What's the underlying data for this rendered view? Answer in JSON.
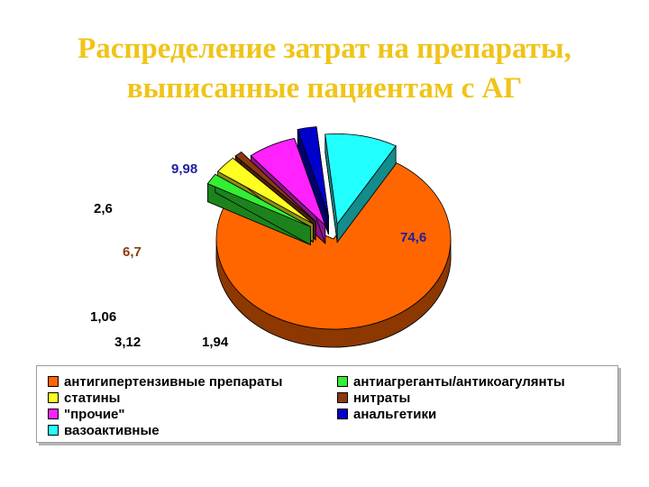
{
  "title_line1": "Распределение затрат на препараты,",
  "title_line2": "выписанные пациентам с АГ",
  "chart_data": {
    "type": "pie",
    "title": "Распределение затрат на препараты, выписанные пациентам с АГ",
    "exploded": true,
    "three_d": true,
    "legend_position": "bottom",
    "slices": [
      {
        "label": "антигипертензивные препараты",
        "value": 74.6,
        "value_text": "74,6",
        "color": "#ff6600",
        "label_color": "#1f1f9e"
      },
      {
        "label": "антиагреганты/антикоагулянты",
        "value": 1.94,
        "value_text": "1,94",
        "color": "#33ee33",
        "label_color": "#000000"
      },
      {
        "label": "статины",
        "value": 3.12,
        "value_text": "3,12",
        "color": "#ffff22",
        "label_color": "#000000"
      },
      {
        "label": "нитраты",
        "value": 1.06,
        "value_text": "1,06",
        "color": "#8b3a10",
        "label_color": "#000000"
      },
      {
        "label": "\"прочие\"",
        "value": 6.7,
        "value_text": "6,7",
        "color": "#ff22ff",
        "label_color": "#8b3a10"
      },
      {
        "label": "анальгетики",
        "value": 2.6,
        "value_text": "2,6",
        "color": "#0000cc",
        "label_color": "#000000"
      },
      {
        "label": "вазоактивные",
        "value": 9.98,
        "value_text": "9,98",
        "color": "#22ffff",
        "label_color": "#1f1f9e"
      }
    ],
    "legend": [
      "антигипертензивные препараты",
      "антиагреганты/антикоагулянты",
      "статины",
      "нитраты",
      "\"прочие\"",
      "анальгетики",
      "вазоактивные"
    ]
  }
}
